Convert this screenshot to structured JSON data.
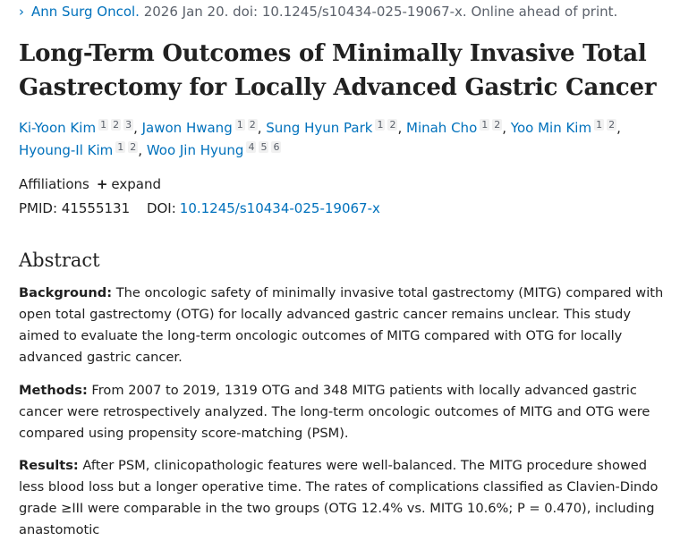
{
  "citation": {
    "chevron": "›",
    "journal": "Ann Surg Oncol.",
    "details": " 2026 Jan 20. doi: 10.1245/s10434-025-19067-x. Online ahead of print."
  },
  "article": {
    "title": "Long-Term Outcomes of Minimally Invasive Total Gastrectomy for Locally Advanced Gastric Cancer",
    "authors": [
      {
        "name": "Ki-Yoon Kim",
        "affs": [
          "1",
          "2",
          "3"
        ]
      },
      {
        "name": "Jawon Hwang",
        "affs": [
          "1",
          "2"
        ]
      },
      {
        "name": "Sung Hyun Park",
        "affs": [
          "1",
          "2"
        ]
      },
      {
        "name": "Minah Cho",
        "affs": [
          "1",
          "2"
        ]
      },
      {
        "name": "Yoo Min Kim",
        "affs": [
          "1",
          "2"
        ]
      },
      {
        "name": "Hyoung-Il Kim",
        "affs": [
          "1",
          "2"
        ]
      },
      {
        "name": "Woo Jin Hyung",
        "affs": [
          "4",
          "5",
          "6"
        ]
      }
    ],
    "affiliations_label": "Affiliations",
    "expand_label": "expand",
    "pmid_label": "PMID:",
    "pmid": "41555131",
    "doi_label": "DOI:",
    "doi": "10.1245/s10434-025-19067-x"
  },
  "abstract": {
    "heading": "Abstract",
    "background_label": "Background:",
    "background_text": "The oncologic safety of minimally invasive total gastrectomy (MITG) compared with open total gastrectomy (OTG) for locally advanced gastric cancer remains unclear. This study aimed to evaluate the long-term oncologic outcomes of MITG compared with OTG for locally advanced gastric cancer.",
    "methods_label": "Methods:",
    "methods_text": "From 2007 to 2019, 1319 OTG and 348 MITG patients with locally advanced gastric cancer were retrospectively analyzed. The long-term oncologic outcomes of MITG and OTG were compared using propensity score-matching (PSM).",
    "results_label": "Results:",
    "results_text": "After PSM, clinicopathologic features were well-balanced. The MITG procedure showed less blood loss but a longer operative time. The rates of complications classified as Clavien-Dindo grade ≥III were comparable in the two groups (OTG 12.4% vs. MITG 10.6%; P = 0.470), including anastomotic"
  }
}
